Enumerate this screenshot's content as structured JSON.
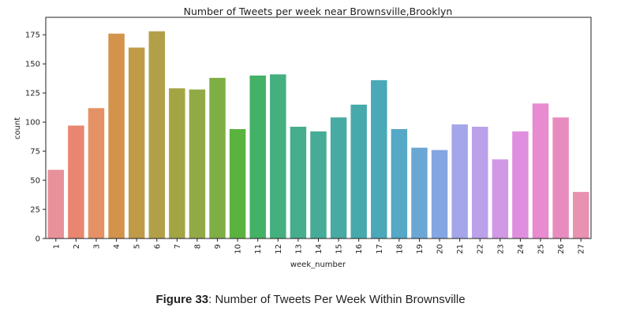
{
  "chart_data": {
    "type": "bar",
    "title": "Number of Tweets per week near Brownsville,Brooklyn",
    "xlabel": "week_number",
    "ylabel": "count",
    "ylim": [
      0,
      190
    ],
    "yticks": [
      0,
      25,
      50,
      75,
      100,
      125,
      150,
      175
    ],
    "grid": false,
    "categories": [
      "1",
      "2",
      "3",
      "4",
      "5",
      "6",
      "7",
      "8",
      "9",
      "10",
      "11",
      "12",
      "13",
      "14",
      "15",
      "16",
      "17",
      "18",
      "19",
      "20",
      "21",
      "22",
      "23",
      "24",
      "25",
      "26",
      "27"
    ],
    "values": [
      59,
      97,
      112,
      176,
      164,
      178,
      129,
      128,
      138,
      94,
      140,
      141,
      96,
      92,
      104,
      115,
      136,
      94,
      78,
      76,
      98,
      96,
      68,
      92,
      116,
      104,
      40
    ],
    "colors": [
      "#e8919a",
      "#e8866f",
      "#e49165",
      "#d3934b",
      "#c09a46",
      "#b2a048",
      "#a3a545",
      "#92aa45",
      "#7fae45",
      "#5bb33f",
      "#43b166",
      "#44af7f",
      "#46ad8e",
      "#46ab97",
      "#48aaa2",
      "#48a9ac",
      "#4aa8b9",
      "#55a8c6",
      "#6aa7d5",
      "#84a6e2",
      "#a4a6e9",
      "#bba1ea",
      "#d198e5",
      "#e08fdf",
      "#e88bd0",
      "#e88cbf",
      "#e891b0"
    ]
  },
  "caption": {
    "label": "Figure 33",
    "text": ": Number of Tweets Per Week Within Brownsville"
  }
}
